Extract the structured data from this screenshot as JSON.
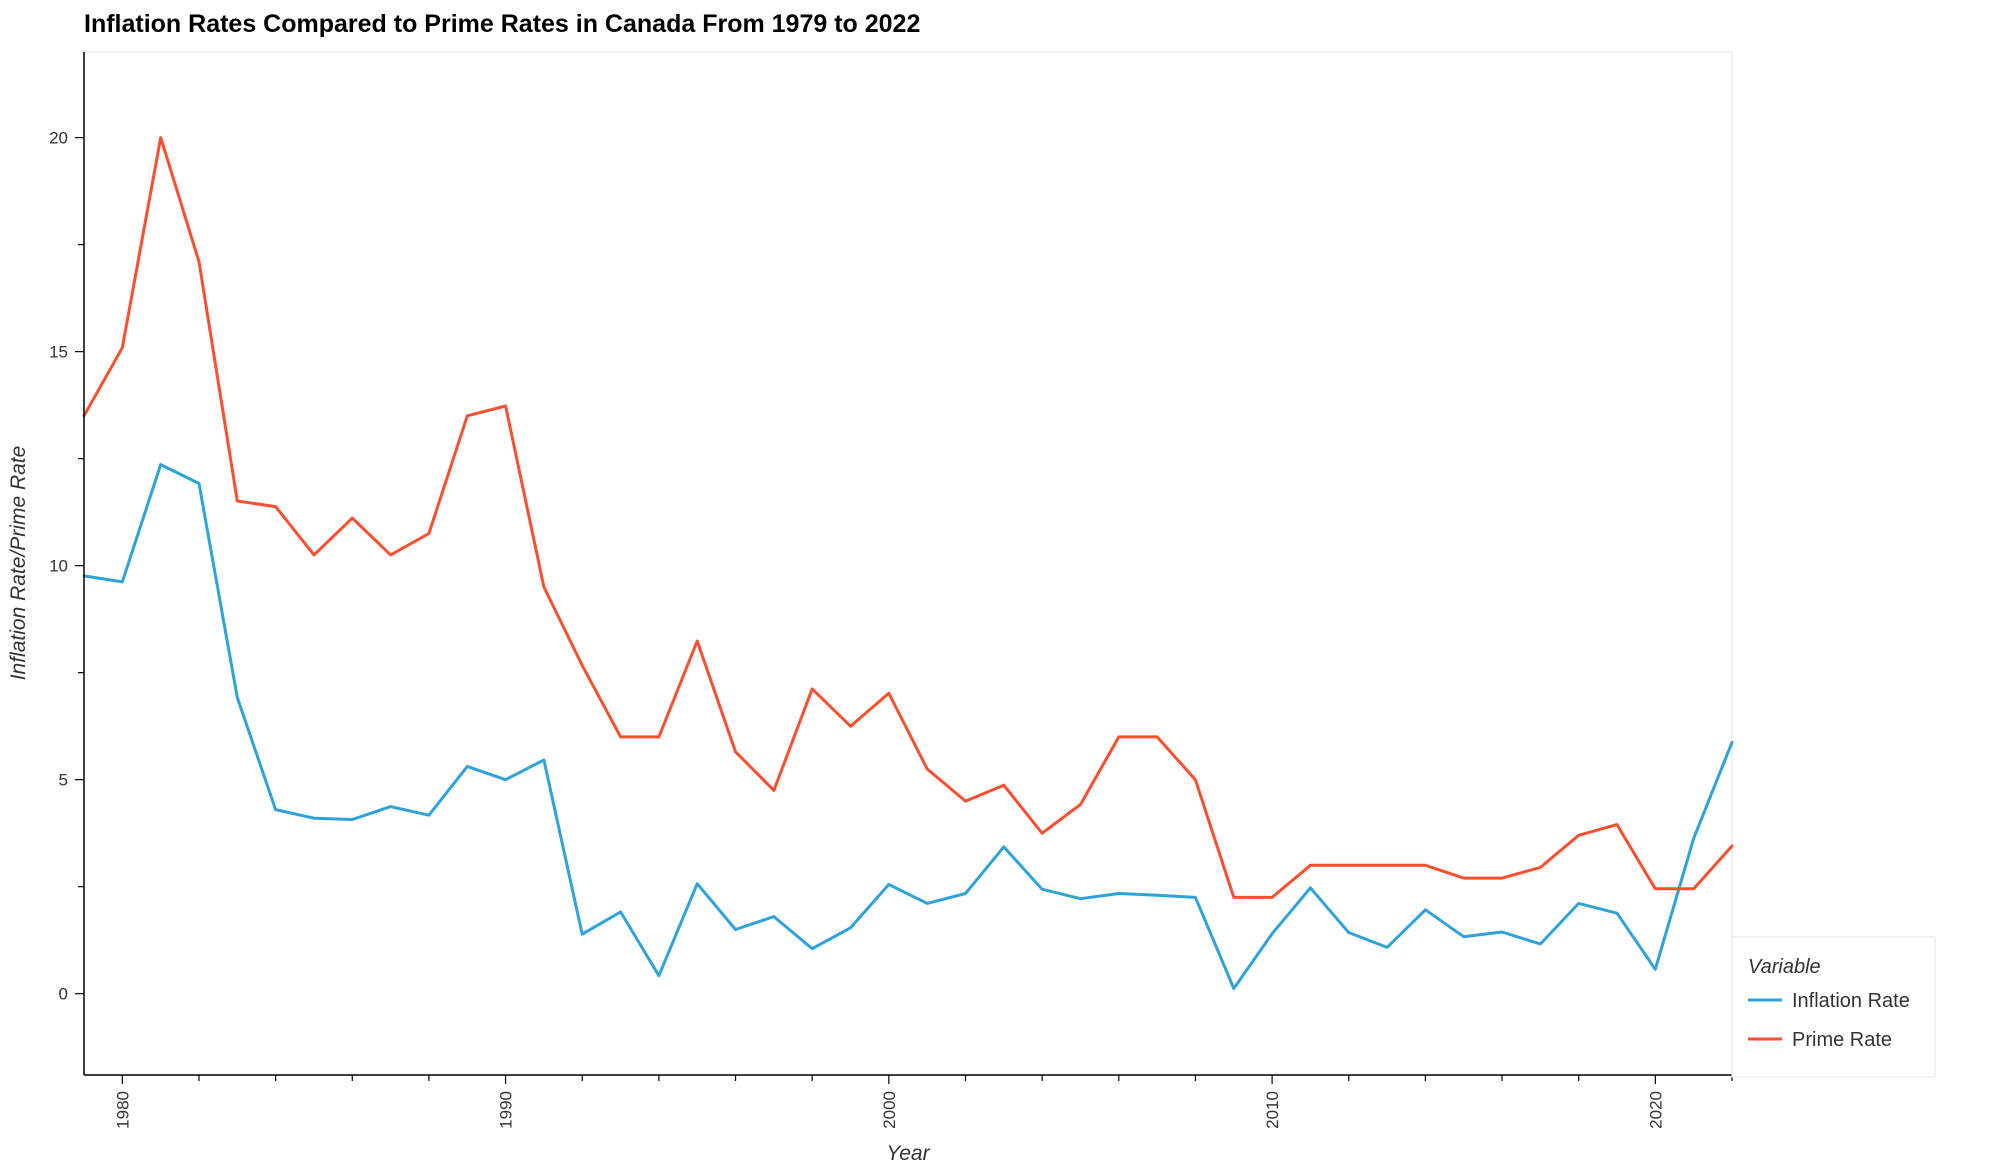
{
  "chart_data": {
    "type": "line",
    "title": "Inflation Rates Compared to Prime Rates in Canada From 1979 to 2022",
    "xlabel": "Year",
    "ylabel": "Inflation Rate/Prime Rate",
    "xlim": [
      1979,
      2022
    ],
    "ylim": [
      -1.9,
      22.0
    ],
    "x_ticks": [
      1980,
      1990,
      2000,
      2010,
      2020
    ],
    "y_ticks": [
      0,
      5,
      10,
      15,
      20
    ],
    "grid": false,
    "legend_title": "Variable",
    "legend_position": "bottom-right-outside",
    "x": [
      1979,
      1980,
      1981,
      1982,
      1983,
      1984,
      1985,
      1986,
      1987,
      1988,
      1989,
      1990,
      1991,
      1992,
      1993,
      1994,
      1995,
      1996,
      1997,
      1998,
      1999,
      2000,
      2001,
      2002,
      2003,
      2004,
      2005,
      2006,
      2007,
      2008,
      2009,
      2010,
      2011,
      2012,
      2013,
      2014,
      2015,
      2016,
      2017,
      2018,
      2019,
      2020,
      2021,
      2022
    ],
    "series": [
      {
        "name": "Inflation Rate",
        "color": "#30a2da",
        "values": [
          9.76,
          9.62,
          12.36,
          11.92,
          6.92,
          4.3,
          4.1,
          4.07,
          4.37,
          4.17,
          5.31,
          5.0,
          5.46,
          1.39,
          1.91,
          0.42,
          2.57,
          1.5,
          1.8,
          1.05,
          1.54,
          2.55,
          2.11,
          2.34,
          3.43,
          2.44,
          2.22,
          2.34,
          2.3,
          2.25,
          0.12,
          1.4,
          2.47,
          1.43,
          1.08,
          1.96,
          1.33,
          1.44,
          1.16,
          2.11,
          1.88,
          0.57,
          3.63,
          5.87
        ]
      },
      {
        "name": "Prime Rate",
        "color": "#fc4f30",
        "values": [
          13.5,
          15.09,
          20.0,
          17.1,
          11.51,
          11.38,
          10.25,
          11.11,
          10.25,
          10.75,
          13.5,
          13.73,
          9.5,
          7.67,
          6.0,
          6.0,
          8.24,
          5.65,
          4.75,
          7.12,
          6.25,
          7.02,
          5.25,
          4.5,
          4.87,
          3.75,
          4.42,
          6.0,
          6.0,
          5.0,
          2.25,
          2.25,
          3.0,
          3.0,
          3.0,
          3.0,
          2.7,
          2.7,
          2.95,
          3.7,
          3.95,
          2.45,
          2.45,
          3.45
        ]
      }
    ]
  }
}
